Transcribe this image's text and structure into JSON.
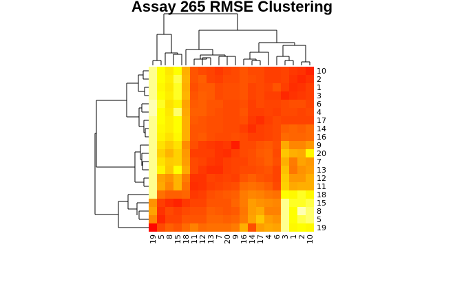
{
  "chart_data": {
    "type": "heatmap",
    "title": "Assay 265 RMSE Clustering",
    "row_labels": [
      "10",
      "2",
      "1",
      "3",
      "6",
      "4",
      "17",
      "14",
      "16",
      "9",
      "20",
      "7",
      "13",
      "12",
      "11",
      "18",
      "15",
      "8",
      "5",
      "19"
    ],
    "col_labels": [
      "19",
      "5",
      "8",
      "15",
      "18",
      "11",
      "12",
      "13",
      "7",
      "20",
      "9",
      "16",
      "14",
      "17",
      "4",
      "6",
      "3",
      "1",
      "2",
      "10"
    ],
    "colors": {
      "low": "#ff0000",
      "mid": "#ff8c00",
      "high": "#ffff00",
      "max": "#ffffb3"
    },
    "values": [
      [
        0.98,
        0.9,
        0.82,
        0.9,
        0.62,
        0.3,
        0.26,
        0.24,
        0.2,
        0.24,
        0.26,
        0.3,
        0.26,
        0.26,
        0.22,
        0.22,
        0.24,
        0.2,
        0.18,
        0.12
      ],
      [
        0.98,
        0.9,
        0.84,
        0.94,
        0.64,
        0.3,
        0.34,
        0.24,
        0.22,
        0.26,
        0.26,
        0.3,
        0.28,
        0.26,
        0.22,
        0.22,
        0.24,
        0.18,
        0.14,
        0.18
      ],
      [
        0.98,
        0.88,
        0.82,
        0.92,
        0.62,
        0.28,
        0.32,
        0.32,
        0.26,
        0.28,
        0.28,
        0.3,
        0.24,
        0.26,
        0.24,
        0.3,
        0.22,
        0.16,
        0.18,
        0.22
      ],
      [
        0.98,
        0.9,
        0.84,
        0.92,
        0.64,
        0.3,
        0.34,
        0.32,
        0.26,
        0.28,
        0.28,
        0.3,
        0.24,
        0.26,
        0.22,
        0.22,
        0.14,
        0.18,
        0.2,
        0.22
      ],
      [
        1.0,
        0.92,
        0.8,
        0.86,
        0.58,
        0.32,
        0.34,
        0.3,
        0.3,
        0.26,
        0.26,
        0.28,
        0.22,
        0.26,
        0.24,
        0.24,
        0.26,
        0.28,
        0.28,
        0.24
      ],
      [
        1.0,
        0.9,
        0.82,
        0.96,
        0.6,
        0.34,
        0.34,
        0.3,
        0.28,
        0.26,
        0.26,
        0.3,
        0.22,
        0.22,
        0.24,
        0.22,
        0.26,
        0.26,
        0.24,
        0.26
      ],
      [
        0.98,
        0.9,
        0.84,
        0.9,
        0.62,
        0.32,
        0.3,
        0.28,
        0.28,
        0.26,
        0.26,
        0.28,
        0.2,
        0.16,
        0.22,
        0.26,
        0.24,
        0.24,
        0.24,
        0.24
      ],
      [
        0.98,
        0.88,
        0.84,
        0.9,
        0.62,
        0.3,
        0.3,
        0.28,
        0.28,
        0.26,
        0.26,
        0.22,
        0.16,
        0.22,
        0.24,
        0.26,
        0.34,
        0.36,
        0.34,
        0.38
      ],
      [
        0.98,
        0.86,
        0.8,
        0.88,
        0.62,
        0.3,
        0.32,
        0.28,
        0.26,
        0.26,
        0.28,
        0.26,
        0.22,
        0.22,
        0.24,
        0.26,
        0.38,
        0.36,
        0.36,
        0.38
      ],
      [
        0.98,
        0.8,
        0.72,
        0.8,
        0.5,
        0.28,
        0.22,
        0.2,
        0.18,
        0.2,
        0.1,
        0.26,
        0.26,
        0.3,
        0.32,
        0.28,
        0.6,
        0.48,
        0.48,
        0.54
      ],
      [
        0.98,
        0.74,
        0.64,
        0.74,
        0.54,
        0.22,
        0.22,
        0.22,
        0.18,
        0.16,
        0.22,
        0.26,
        0.28,
        0.32,
        0.34,
        0.26,
        0.7,
        0.62,
        0.6,
        0.88
      ],
      [
        0.98,
        0.8,
        0.72,
        0.74,
        0.56,
        0.26,
        0.24,
        0.2,
        0.18,
        0.22,
        0.24,
        0.24,
        0.28,
        0.3,
        0.34,
        0.28,
        0.62,
        0.44,
        0.58,
        0.54
      ],
      [
        0.98,
        0.86,
        0.7,
        0.9,
        0.6,
        0.26,
        0.2,
        0.16,
        0.16,
        0.22,
        0.24,
        0.26,
        0.26,
        0.28,
        0.3,
        0.24,
        0.68,
        0.42,
        0.52,
        0.56
      ],
      [
        0.98,
        0.58,
        0.52,
        0.64,
        0.44,
        0.18,
        0.18,
        0.24,
        0.22,
        0.24,
        0.22,
        0.3,
        0.34,
        0.3,
        0.28,
        0.24,
        0.72,
        0.54,
        0.54,
        0.62
      ],
      [
        0.98,
        0.6,
        0.48,
        0.64,
        0.4,
        0.16,
        0.18,
        0.22,
        0.24,
        0.26,
        0.28,
        0.38,
        0.4,
        0.38,
        0.34,
        0.26,
        0.74,
        0.6,
        0.62,
        0.62
      ],
      [
        0.98,
        0.4,
        0.34,
        0.34,
        0.36,
        0.2,
        0.22,
        0.28,
        0.3,
        0.32,
        0.34,
        0.44,
        0.48,
        0.46,
        0.42,
        0.4,
        0.9,
        0.88,
        0.92,
        0.88
      ],
      [
        0.52,
        0.22,
        0.16,
        0.12,
        0.2,
        0.24,
        0.24,
        0.3,
        0.3,
        0.3,
        0.36,
        0.44,
        0.56,
        0.52,
        0.5,
        0.48,
        0.98,
        0.92,
        0.92,
        0.94
      ],
      [
        0.58,
        0.18,
        0.26,
        0.22,
        0.26,
        0.28,
        0.28,
        0.34,
        0.32,
        0.3,
        0.32,
        0.42,
        0.56,
        0.6,
        0.46,
        0.46,
        0.98,
        0.9,
        1.0,
        0.96
      ],
      [
        0.48,
        0.14,
        0.24,
        0.24,
        0.3,
        0.3,
        0.3,
        0.36,
        0.36,
        0.34,
        0.36,
        0.44,
        0.58,
        0.7,
        0.56,
        0.52,
        0.98,
        0.9,
        0.94,
        0.96
      ],
      [
        0.02,
        0.26,
        0.34,
        0.3,
        0.38,
        0.46,
        0.38,
        0.4,
        0.4,
        0.4,
        0.44,
        0.62,
        0.28,
        0.56,
        0.6,
        0.58,
        0.98,
        0.88,
        0.9,
        0.88
      ]
    ]
  }
}
